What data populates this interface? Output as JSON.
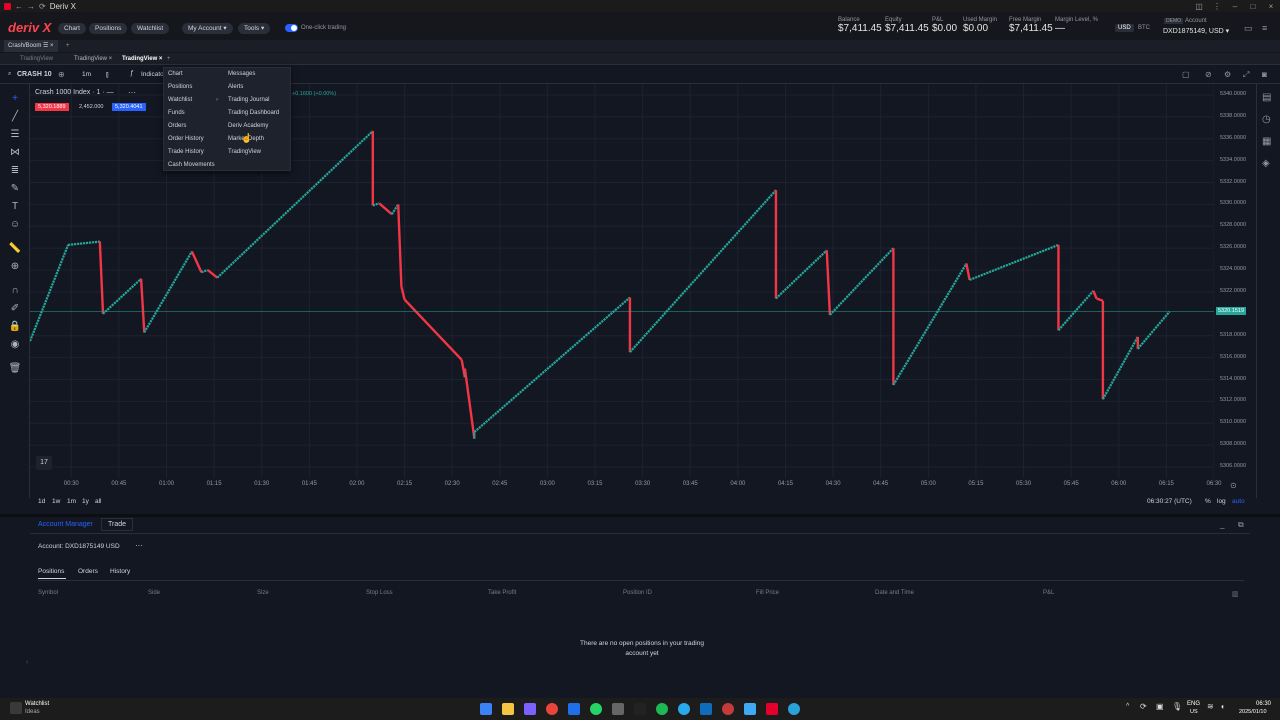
{
  "window": {
    "title": "Deriv X"
  },
  "header": {
    "logo": "deriv X",
    "nav": [
      "Chart",
      "Positions",
      "Watchlist"
    ],
    "my_account": "My Account ▾",
    "tools": "Tools ▾",
    "one_click": "One-click trading",
    "stats": [
      {
        "label": "Balance",
        "value": "$7,411.45"
      },
      {
        "label": "Equity",
        "value": "$7,411.45"
      },
      {
        "label": "P&L",
        "value": "$0.00"
      },
      {
        "label": "Used Margin",
        "value": "$0.00"
      },
      {
        "label": "Free Margin",
        "value": "$7,411.45"
      },
      {
        "label": "Margin Level, %",
        "value": "—"
      }
    ],
    "currencies": [
      "USD",
      "BTC"
    ],
    "demo_badge": "DEMO",
    "account_label": "Account",
    "account_value": "DXD1875149, USD ▾"
  },
  "workspace": {
    "tab": "Crash/Boom ☰ ×"
  },
  "view_tabs": [
    "TradingView",
    "TradingView ×",
    "TradingView ×"
  ],
  "chartbar": {
    "symbol": "CRASH 10",
    "interval": "1m",
    "indicators": "Indicato"
  },
  "legend": {
    "title": "Crash 1000 Index · 1 · —",
    "bid": "5,320.1889",
    "spread": "2,452.000",
    "ask": "5,320.4041",
    "change": "+0.1600 (+0.00%)"
  },
  "menu": {
    "left": [
      "Chart",
      "Positions",
      "Watchlist",
      "Funds",
      "Orders",
      "Order History",
      "Trade History",
      "Cash Movements"
    ],
    "right": [
      "Messages",
      "Alerts",
      "Trading Journal",
      "Trading Dashboard",
      "Deriv Academy",
      "Market Depth",
      "TradingView"
    ]
  },
  "price_axis": [
    "5340.0000",
    "5338.0000",
    "5336.0000",
    "5334.0000",
    "5332.0000",
    "5330.0000",
    "5328.0000",
    "5326.0000",
    "5324.0000",
    "5322.0000",
    "5318.0000",
    "5316.0000",
    "5314.0000",
    "5312.0000",
    "5310.0000",
    "5308.0000",
    "5306.0000"
  ],
  "last_price": "5320.1519",
  "time_axis": [
    "00:30",
    "00:45",
    "01:00",
    "01:15",
    "01:30",
    "01:45",
    "02:00",
    "02:15",
    "02:30",
    "02:45",
    "03:00",
    "03:15",
    "03:30",
    "03:45",
    "04:00",
    "04:15",
    "04:30",
    "04:45",
    "05:00",
    "05:15",
    "05:30",
    "05:45",
    "06:00",
    "06:15",
    "06:30"
  ],
  "ranges": [
    "1d",
    "1w",
    "1m",
    "1y",
    "all"
  ],
  "clock": "06:30:27 (UTC)",
  "scale_opts": [
    "%",
    "log",
    "auto"
  ],
  "chart_data": {
    "type": "line",
    "x": [
      "00:17",
      "00:29",
      "00:39",
      "00:40",
      "00:52",
      "00:53",
      "01:08",
      "01:11",
      "01:13",
      "01:16",
      "02:05",
      "02:05",
      "02:07",
      "02:11",
      "02:13",
      "02:14",
      "02:15",
      "02:33",
      "02:34",
      "02:34",
      "02:37",
      "02:37",
      "03:26",
      "03:26",
      "04:12",
      "04:12",
      "04:28",
      "04:29",
      "04:49",
      "04:49",
      "05:12",
      "05:13",
      "05:41",
      "05:41",
      "05:52",
      "05:53",
      "05:55",
      "05:55",
      "06:06",
      "06:06",
      "06:16"
    ],
    "y": [
      5317.5,
      5326.3,
      5326.6,
      5320.0,
      5323.2,
      5318.3,
      5325.7,
      5323.8,
      5324.0,
      5323.3,
      5336.7,
      5329.9,
      5330.1,
      5329.1,
      5330.0,
      5322.5,
      5321.3,
      5315.8,
      5314.2,
      5315.0,
      5308.6,
      5309.2,
      5321.5,
      5316.5,
      5331.3,
      5321.4,
      5325.8,
      5319.9,
      5326.0,
      5313.5,
      5324.6,
      5323.1,
      5326.3,
      5318.5,
      5322.1,
      5321.4,
      5321.2,
      5312.2,
      5317.9,
      5316.8,
      5320.2
    ],
    "ylim": [
      5305,
      5341
    ],
    "grid": true
  },
  "panel": {
    "tabs": [
      "Account Manager",
      "Trade"
    ],
    "account": "Account: DXD1875149 USD",
    "subtabs": [
      "Positions",
      "Orders",
      "History"
    ],
    "columns": [
      "Symbol",
      "Side",
      "Size",
      "Stop Loss",
      "Take Profit",
      "Position ID",
      "Fill Price",
      "Date and Time",
      "P&L"
    ],
    "empty": "There are no open positions in your trading account yet"
  },
  "taskbar": {
    "widget_title": "Watchlist",
    "widget_sub": "Ideas",
    "lang": "ENG",
    "region": "US",
    "time": "06:30",
    "date": "2025/01/10"
  },
  "colors": {
    "up": "#26a69a",
    "down": "#f23645",
    "bg": "#131722",
    "accent": "#2962ff"
  }
}
